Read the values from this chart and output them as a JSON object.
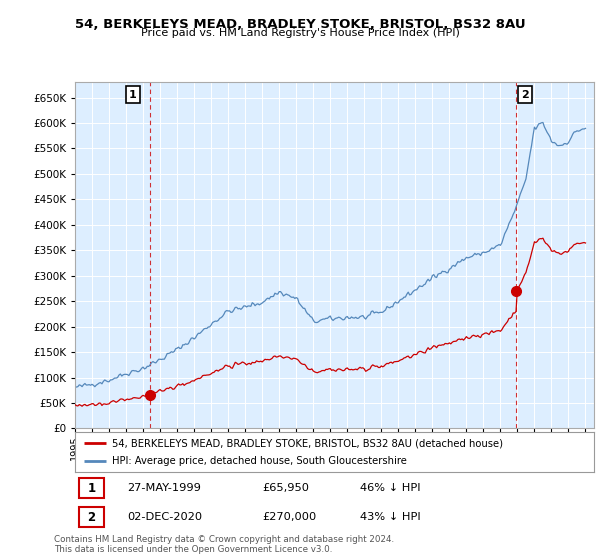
{
  "title_line1": "54, BERKELEYS MEAD, BRADLEY STOKE, BRISTOL, BS32 8AU",
  "title_line2": "Price paid vs. HM Land Registry's House Price Index (HPI)",
  "ylim": [
    0,
    680000
  ],
  "yticks": [
    0,
    50000,
    100000,
    150000,
    200000,
    250000,
    300000,
    350000,
    400000,
    450000,
    500000,
    550000,
    600000,
    650000
  ],
  "xlim_start": 1995.0,
  "xlim_end": 2025.5,
  "background_color": "#ffffff",
  "plot_bg_color": "#ddeeff",
  "grid_color": "#ffffff",
  "hpi_color": "#5588bb",
  "price_color": "#cc0000",
  "purchase1_x": 1999.38,
  "purchase1_y": 65950,
  "purchase1_label": "1",
  "purchase2_x": 2020.92,
  "purchase2_y": 270000,
  "purchase2_label": "2",
  "annotation1_date": "27-MAY-1999",
  "annotation1_price": "£65,950",
  "annotation1_hpi": "46% ↓ HPI",
  "annotation2_date": "02-DEC-2020",
  "annotation2_price": "£270,000",
  "annotation2_hpi": "43% ↓ HPI",
  "legend_line1": "54, BERKELEYS MEAD, BRADLEY STOKE, BRISTOL, BS32 8AU (detached house)",
  "legend_line2": "HPI: Average price, detached house, South Gloucestershire",
  "footer": "Contains HM Land Registry data © Crown copyright and database right 2024.\nThis data is licensed under the Open Government Licence v3.0."
}
